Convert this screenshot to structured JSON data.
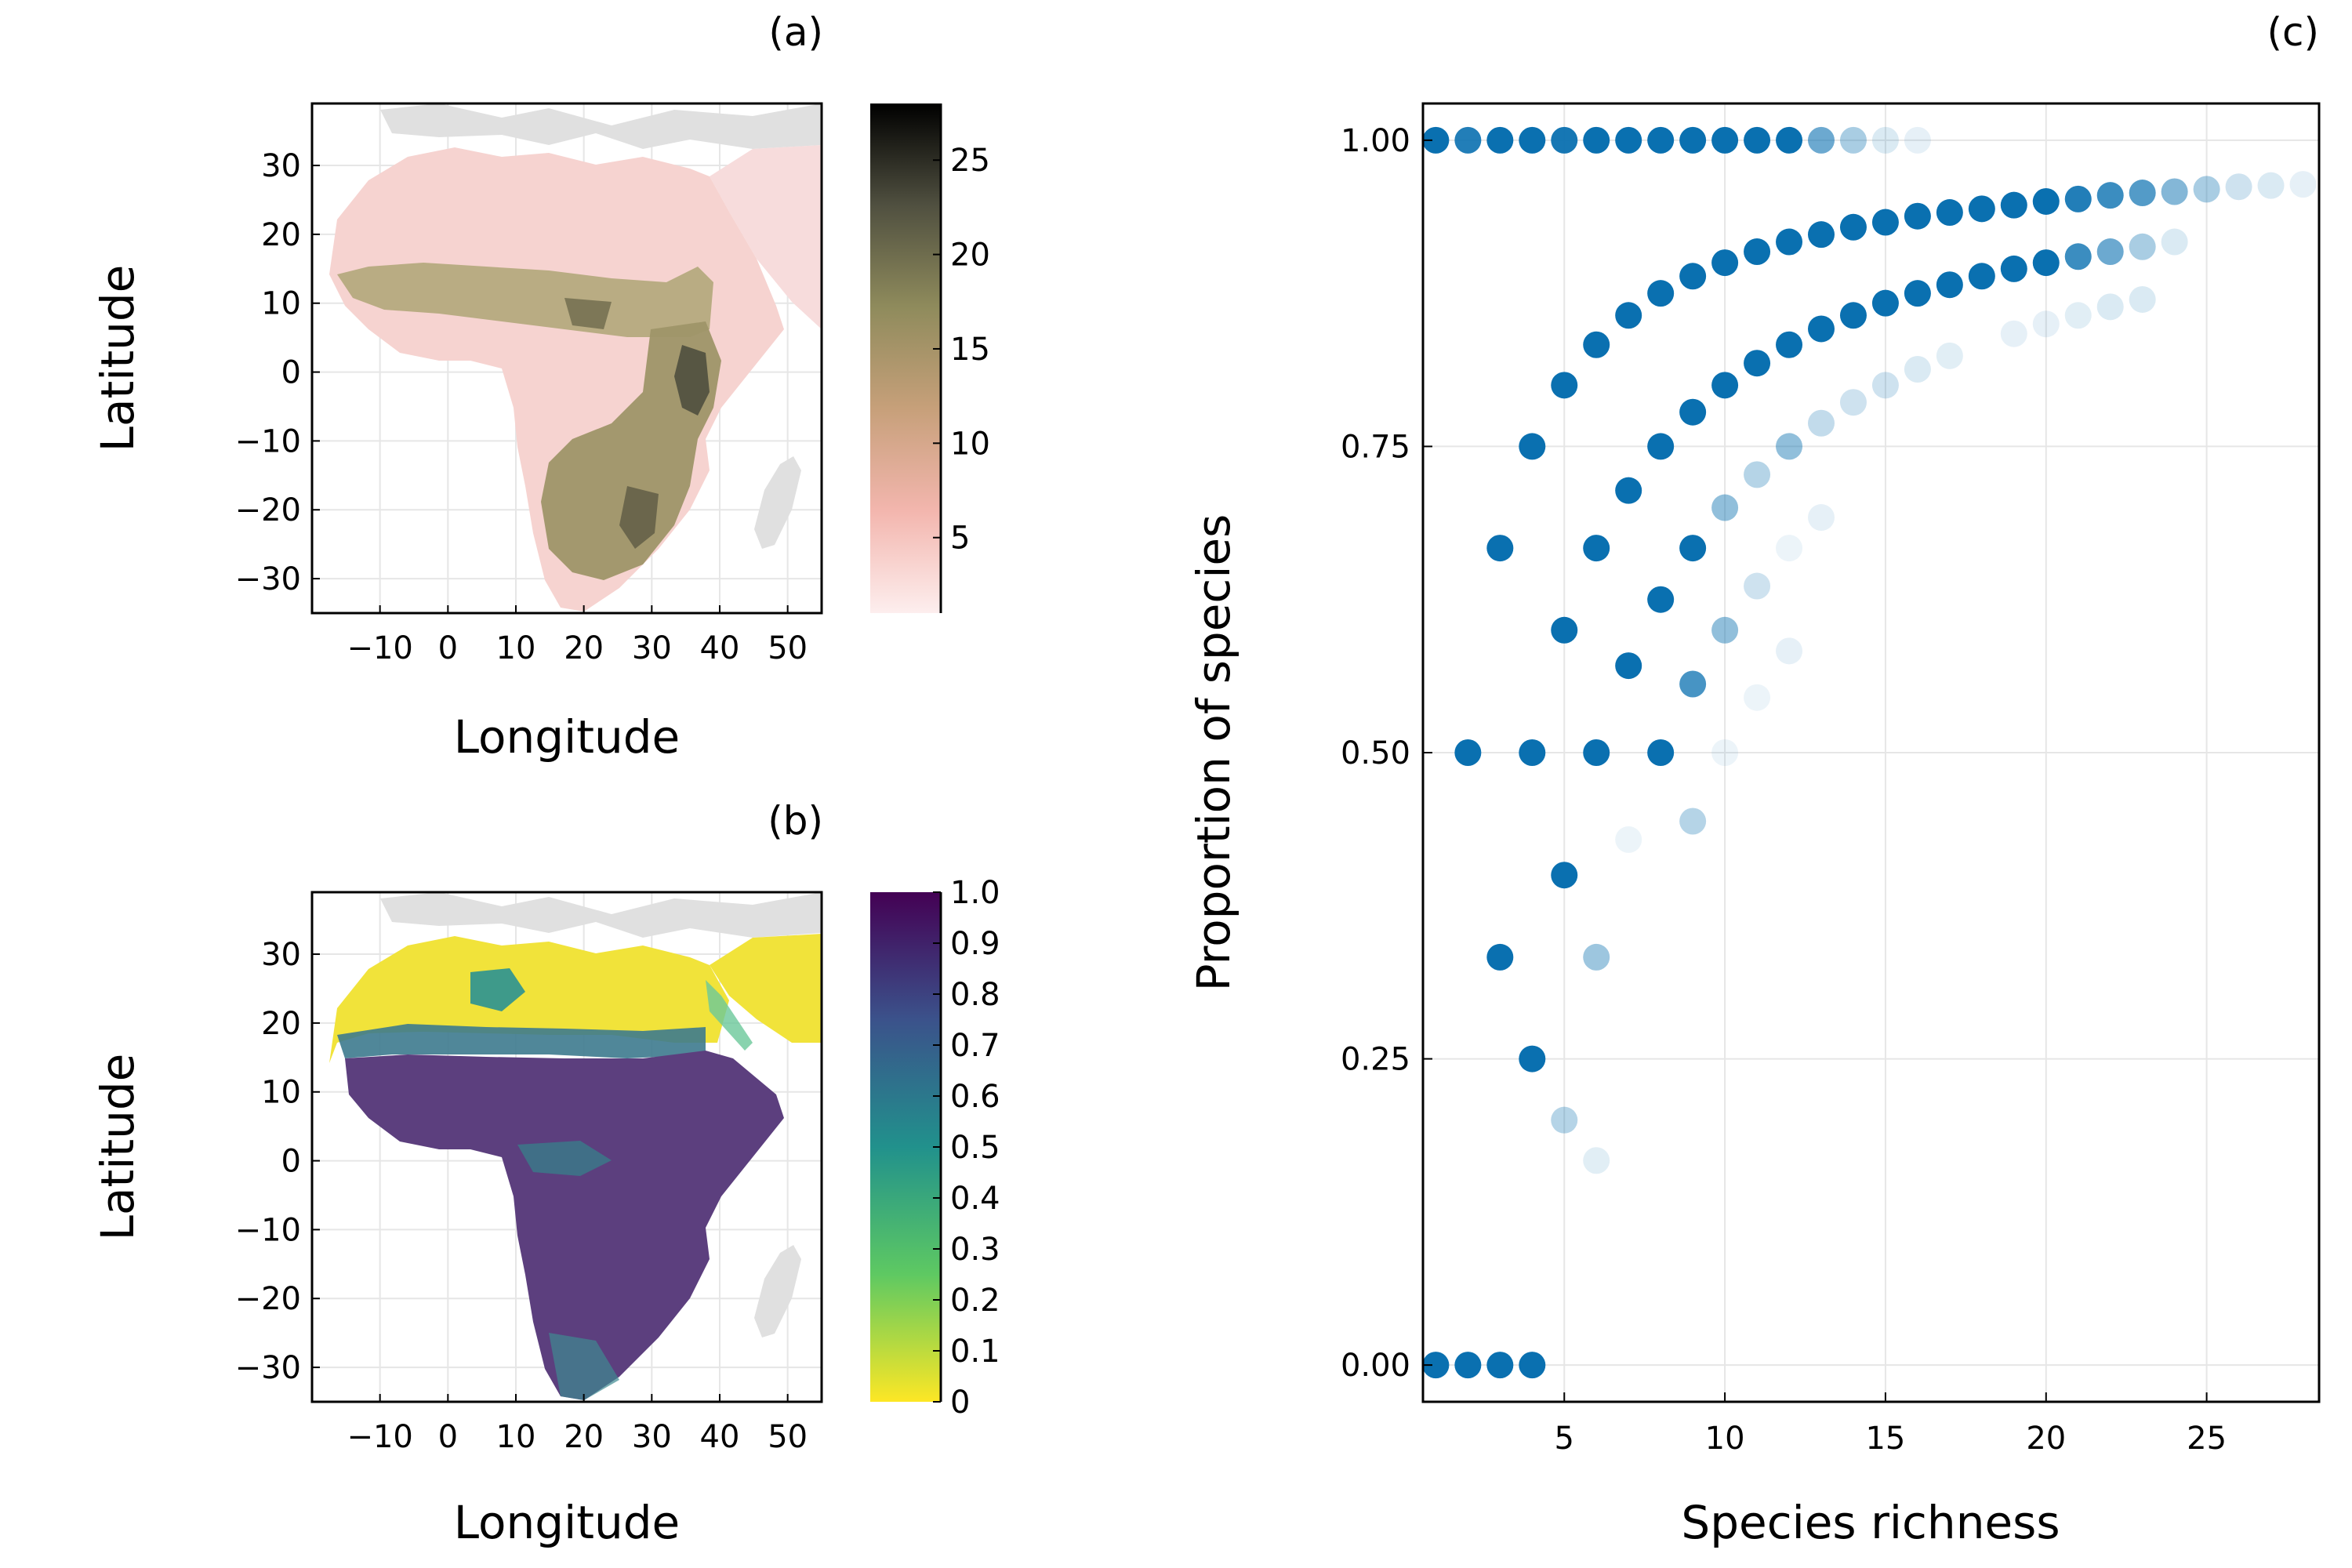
{
  "chart_data": [
    {
      "panel": "(a)",
      "type": "heatmap",
      "xlabel": "Longitude",
      "ylabel": "Latitude",
      "xticks": [
        "−10",
        "0",
        "10",
        "20",
        "30",
        "40",
        "50"
      ],
      "xtick_values": [
        -10,
        0,
        10,
        20,
        30,
        40,
        50
      ],
      "yticks": [
        "30",
        "20",
        "10",
        "0",
        "−10",
        "−20",
        "−30"
      ],
      "ytick_values": [
        30,
        20,
        10,
        0,
        -10,
        -20,
        -30
      ],
      "xlim": [
        -20,
        55
      ],
      "ylim": [
        -35,
        39
      ],
      "colorbar": {
        "ticks": [
          "25",
          "20",
          "15",
          "10",
          "5"
        ],
        "tick_values": [
          25,
          20,
          15,
          10,
          5
        ],
        "range": [
          1,
          28
        ],
        "colors": [
          "#fdeeee",
          "#f3b6ae",
          "#c7a07a",
          "#8f8b5c",
          "#505040",
          "#000000"
        ]
      },
      "grid": true
    },
    {
      "panel": "(b)",
      "type": "heatmap",
      "xlabel": "Longitude",
      "ylabel": "Latitude",
      "xticks": [
        "−10",
        "0",
        "10",
        "20",
        "30",
        "40",
        "50"
      ],
      "xtick_values": [
        -10,
        0,
        10,
        20,
        30,
        40,
        50
      ],
      "yticks": [
        "30",
        "20",
        "10",
        "0",
        "−10",
        "−20",
        "−30"
      ],
      "ytick_values": [
        30,
        20,
        10,
        0,
        -10,
        -20,
        -30
      ],
      "xlim": [
        -20,
        55
      ],
      "ylim": [
        -35,
        39
      ],
      "colorbar": {
        "ticks": [
          "1.0",
          "0.9",
          "0.8",
          "0.7",
          "0.6",
          "0.5",
          "0.4",
          "0.3",
          "0.2",
          "0.1",
          "0"
        ],
        "tick_values": [
          1.0,
          0.9,
          0.8,
          0.7,
          0.6,
          0.5,
          0.4,
          0.3,
          0.2,
          0.1,
          0
        ],
        "range": [
          0,
          1
        ],
        "colors": [
          "#fde725",
          "#5ec962",
          "#21918c",
          "#3b528b",
          "#440154"
        ]
      },
      "grid": true
    },
    {
      "panel": "(c)",
      "type": "scatter",
      "xlabel": "Species richness",
      "ylabel": "Proportion of species",
      "xticks": [
        "5",
        "10",
        "15",
        "20",
        "25"
      ],
      "xtick_values": [
        5,
        10,
        15,
        20,
        25
      ],
      "yticks": [
        "1.00",
        "0.75",
        "0.50",
        "0.25",
        "0.00"
      ],
      "ytick_values": [
        1.0,
        0.75,
        0.5,
        0.25,
        0.0
      ],
      "xlim": [
        0.6,
        28.5
      ],
      "ylim": [
        -0.03,
        1.03
      ],
      "grid": true,
      "marker_color": "#0a70b0",
      "points": [
        {
          "x": 1,
          "y": 1.0,
          "a": 1
        },
        {
          "x": 2,
          "y": 1.0,
          "a": 0.9
        },
        {
          "x": 3,
          "y": 1.0,
          "a": 1
        },
        {
          "x": 4,
          "y": 1.0,
          "a": 1
        },
        {
          "x": 5,
          "y": 1.0,
          "a": 0.95
        },
        {
          "x": 6,
          "y": 1.0,
          "a": 1
        },
        {
          "x": 7,
          "y": 1.0,
          "a": 1
        },
        {
          "x": 8,
          "y": 1.0,
          "a": 1
        },
        {
          "x": 9,
          "y": 1.0,
          "a": 1
        },
        {
          "x": 10,
          "y": 1.0,
          "a": 1
        },
        {
          "x": 11,
          "y": 1.0,
          "a": 1
        },
        {
          "x": 12,
          "y": 1.0,
          "a": 1
        },
        {
          "x": 13,
          "y": 1.0,
          "a": 0.6
        },
        {
          "x": 14,
          "y": 1.0,
          "a": 0.35
        },
        {
          "x": 15,
          "y": 1.0,
          "a": 0.15
        },
        {
          "x": 16,
          "y": 1.0,
          "a": 0.1
        },
        {
          "x": 5,
          "y": 0.8,
          "a": 1
        },
        {
          "x": 6,
          "y": 0.833,
          "a": 1
        },
        {
          "x": 7,
          "y": 0.857,
          "a": 1
        },
        {
          "x": 8,
          "y": 0.875,
          "a": 1
        },
        {
          "x": 9,
          "y": 0.889,
          "a": 1
        },
        {
          "x": 10,
          "y": 0.9,
          "a": 1
        },
        {
          "x": 11,
          "y": 0.909,
          "a": 1
        },
        {
          "x": 12,
          "y": 0.917,
          "a": 1
        },
        {
          "x": 13,
          "y": 0.923,
          "a": 1
        },
        {
          "x": 14,
          "y": 0.929,
          "a": 1
        },
        {
          "x": 15,
          "y": 0.933,
          "a": 1
        },
        {
          "x": 16,
          "y": 0.938,
          "a": 1
        },
        {
          "x": 17,
          "y": 0.941,
          "a": 1
        },
        {
          "x": 18,
          "y": 0.944,
          "a": 1
        },
        {
          "x": 19,
          "y": 0.947,
          "a": 1
        },
        {
          "x": 20,
          "y": 0.95,
          "a": 1
        },
        {
          "x": 21,
          "y": 0.952,
          "a": 0.9
        },
        {
          "x": 22,
          "y": 0.955,
          "a": 0.8
        },
        {
          "x": 23,
          "y": 0.957,
          "a": 0.7
        },
        {
          "x": 24,
          "y": 0.958,
          "a": 0.5
        },
        {
          "x": 25,
          "y": 0.96,
          "a": 0.35
        },
        {
          "x": 26,
          "y": 0.962,
          "a": 0.2
        },
        {
          "x": 27,
          "y": 0.963,
          "a": 0.15
        },
        {
          "x": 28,
          "y": 0.964,
          "a": 0.1
        },
        {
          "x": 4,
          "y": 0.75,
          "a": 1
        },
        {
          "x": 8,
          "y": 0.75,
          "a": 1
        },
        {
          "x": 9,
          "y": 0.778,
          "a": 1
        },
        {
          "x": 10,
          "y": 0.8,
          "a": 1
        },
        {
          "x": 11,
          "y": 0.818,
          "a": 1
        },
        {
          "x": 12,
          "y": 0.833,
          "a": 1
        },
        {
          "x": 13,
          "y": 0.846,
          "a": 1
        },
        {
          "x": 14,
          "y": 0.857,
          "a": 1
        },
        {
          "x": 15,
          "y": 0.867,
          "a": 1
        },
        {
          "x": 16,
          "y": 0.875,
          "a": 1
        },
        {
          "x": 17,
          "y": 0.882,
          "a": 1
        },
        {
          "x": 18,
          "y": 0.889,
          "a": 1
        },
        {
          "x": 19,
          "y": 0.895,
          "a": 1
        },
        {
          "x": 20,
          "y": 0.9,
          "a": 1
        },
        {
          "x": 21,
          "y": 0.905,
          "a": 0.8
        },
        {
          "x": 22,
          "y": 0.909,
          "a": 0.6
        },
        {
          "x": 23,
          "y": 0.913,
          "a": 0.35
        },
        {
          "x": 24,
          "y": 0.917,
          "a": 0.15
        },
        {
          "x": 3,
          "y": 0.667,
          "a": 1
        },
        {
          "x": 6,
          "y": 0.667,
          "a": 1
        },
        {
          "x": 7,
          "y": 0.714,
          "a": 1
        },
        {
          "x": 9,
          "y": 0.667,
          "a": 1
        },
        {
          "x": 10,
          "y": 0.7,
          "a": 0.45
        },
        {
          "x": 11,
          "y": 0.727,
          "a": 0.3
        },
        {
          "x": 12,
          "y": 0.75,
          "a": 0.45
        },
        {
          "x": 13,
          "y": 0.769,
          "a": 0.25
        },
        {
          "x": 14,
          "y": 0.786,
          "a": 0.2
        },
        {
          "x": 15,
          "y": 0.8,
          "a": 0.2
        },
        {
          "x": 16,
          "y": 0.813,
          "a": 0.15
        },
        {
          "x": 17,
          "y": 0.824,
          "a": 0.12
        },
        {
          "x": 19,
          "y": 0.842,
          "a": 0.1
        },
        {
          "x": 20,
          "y": 0.85,
          "a": 0.1
        },
        {
          "x": 21,
          "y": 0.857,
          "a": 0.12
        },
        {
          "x": 22,
          "y": 0.864,
          "a": 0.15
        },
        {
          "x": 23,
          "y": 0.87,
          "a": 0.15
        },
        {
          "x": 5,
          "y": 0.6,
          "a": 1
        },
        {
          "x": 8,
          "y": 0.625,
          "a": 1
        },
        {
          "x": 7,
          "y": 0.571,
          "a": 1
        },
        {
          "x": 9,
          "y": 0.556,
          "a": 0.75
        },
        {
          "x": 10,
          "y": 0.6,
          "a": 0.45
        },
        {
          "x": 11,
          "y": 0.636,
          "a": 0.2
        },
        {
          "x": 11,
          "y": 0.545,
          "a": 0.08
        },
        {
          "x": 12,
          "y": 0.583,
          "a": 0.1
        },
        {
          "x": 12,
          "y": 0.667,
          "a": 0.08
        },
        {
          "x": 13,
          "y": 0.692,
          "a": 0.1
        },
        {
          "x": 2,
          "y": 0.5,
          "a": 1
        },
        {
          "x": 4,
          "y": 0.5,
          "a": 1
        },
        {
          "x": 6,
          "y": 0.5,
          "a": 1
        },
        {
          "x": 8,
          "y": 0.5,
          "a": 1
        },
        {
          "x": 10,
          "y": 0.5,
          "a": 0.08
        },
        {
          "x": 7,
          "y": 0.429,
          "a": 0.08
        },
        {
          "x": 9,
          "y": 0.444,
          "a": 0.3
        },
        {
          "x": 5,
          "y": 0.4,
          "a": 1
        },
        {
          "x": 3,
          "y": 0.333,
          "a": 1
        },
        {
          "x": 6,
          "y": 0.333,
          "a": 0.4
        },
        {
          "x": 4,
          "y": 0.25,
          "a": 1
        },
        {
          "x": 5,
          "y": 0.2,
          "a": 0.3
        },
        {
          "x": 6,
          "y": 0.167,
          "a": 0.12
        },
        {
          "x": 1,
          "y": 0.0,
          "a": 1
        },
        {
          "x": 2,
          "y": 0.0,
          "a": 1
        },
        {
          "x": 3,
          "y": 0.0,
          "a": 1
        },
        {
          "x": 4,
          "y": 0.0,
          "a": 1
        }
      ]
    }
  ]
}
